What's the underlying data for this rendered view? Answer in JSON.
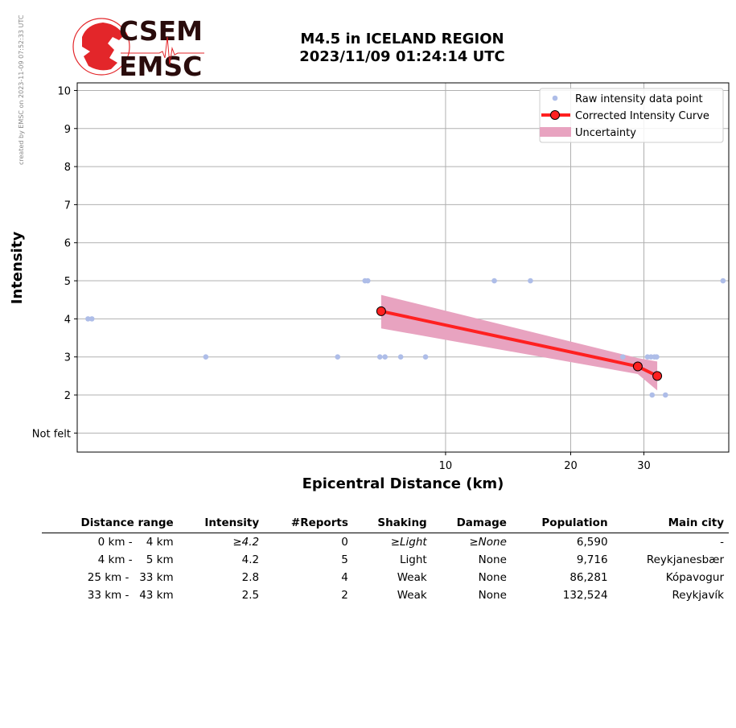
{
  "watermark": "created by EMSC on 2023-11-09 07:52:33 UTC",
  "logo": {
    "line1": "CSEM",
    "line2": "EMSC",
    "color": "#e3262a"
  },
  "header": {
    "title_line1": "M4.5 in ICELAND REGION",
    "title_line2": "2023/11/09 01:24:14 UTC"
  },
  "chart_data": {
    "type": "scatter",
    "xlabel": "Epicentral Distance (km)",
    "ylabel": "Intensity",
    "x_scale": "log",
    "xlim": [
      1.3,
      48
    ],
    "ylim": [
      0.5,
      10.2
    ],
    "x_ticks": [
      10,
      20,
      30
    ],
    "y_ticks": [
      {
        "value": 1,
        "label": "Not felt"
      },
      {
        "value": 2,
        "label": "2"
      },
      {
        "value": 3,
        "label": "3"
      },
      {
        "value": 4,
        "label": "4"
      },
      {
        "value": 5,
        "label": "5"
      },
      {
        "value": 6,
        "label": "6"
      },
      {
        "value": 7,
        "label": "7"
      },
      {
        "value": 8,
        "label": "8"
      },
      {
        "value": 9,
        "label": "9"
      },
      {
        "value": 10,
        "label": "10"
      }
    ],
    "grid": true,
    "legend_position": "top-right",
    "series": [
      {
        "name": "Raw intensity data point",
        "color": "#aebde8",
        "points": [
          [
            1.38,
            4
          ],
          [
            1.41,
            4
          ],
          [
            2.65,
            3
          ],
          [
            5.5,
            3
          ],
          [
            6.4,
            5
          ],
          [
            6.5,
            5
          ],
          [
            6.95,
            3
          ],
          [
            7.15,
            3
          ],
          [
            7.8,
            3
          ],
          [
            8.95,
            3
          ],
          [
            13.1,
            5
          ],
          [
            16.0,
            5
          ],
          [
            26.7,
            3
          ],
          [
            30.6,
            3
          ],
          [
            31.2,
            3
          ],
          [
            31.8,
            3
          ],
          [
            32.2,
            3
          ],
          [
            31.4,
            2
          ],
          [
            33.8,
            2
          ],
          [
            46.5,
            5
          ]
        ]
      },
      {
        "name": "Corrected Intensity Curve",
        "color": "#ff2020",
        "points": [
          [
            7.0,
            4.2
          ],
          [
            29.0,
            2.75
          ],
          [
            32.3,
            2.5
          ]
        ]
      },
      {
        "name": "Uncertainty",
        "color": "#e8a3c0",
        "upper": [
          [
            7.0,
            4.63
          ],
          [
            29.0,
            2.97
          ],
          [
            32.3,
            2.88
          ]
        ],
        "lower": [
          [
            7.0,
            3.75
          ],
          [
            29.0,
            2.55
          ],
          [
            32.3,
            2.12
          ]
        ]
      }
    ]
  },
  "table": {
    "headers": [
      "Distance range",
      "Intensity",
      "#Reports",
      "Shaking",
      "Damage",
      "Population",
      "Main city"
    ],
    "rows": [
      {
        "range": "0 km -    4 km",
        "intensity": "≥4.2",
        "reports": "0",
        "shaking": "≥Light",
        "damage": "≥None",
        "population": "6,590",
        "city": "-"
      },
      {
        "range": "4 km -    5 km",
        "intensity": "4.2",
        "reports": "5",
        "shaking": "Light",
        "damage": "None",
        "population": "9,716",
        "city": "Reykjanesbær"
      },
      {
        "range": "25 km -   33 km",
        "intensity": "2.8",
        "reports": "4",
        "shaking": "Weak",
        "damage": "None",
        "population": "86,281",
        "city": "Kópavogur"
      },
      {
        "range": "33 km -   43 km",
        "intensity": "2.5",
        "reports": "2",
        "shaking": "Weak",
        "damage": "None",
        "population": "132,524",
        "city": "Reykjavík"
      }
    ]
  }
}
